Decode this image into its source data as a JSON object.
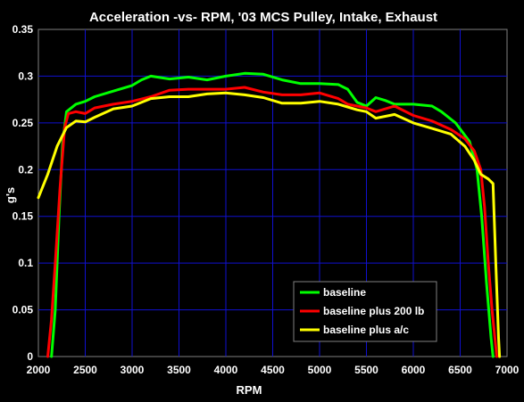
{
  "chart_data": {
    "type": "line",
    "title": "Acceleration -vs- RPM, '03 MCS Pulley, Intake, Exhaust",
    "xlabel": "RPM",
    "ylabel": "g's",
    "xlim": [
      2000,
      7000
    ],
    "ylim": [
      0,
      0.35
    ],
    "xticks": [
      "2000",
      "2500",
      "3000",
      "3500",
      "4000",
      "4500",
      "5000",
      "5500",
      "6000",
      "6500",
      "7000"
    ],
    "yticks": [
      "0",
      "0.05",
      "0.1",
      "0.15",
      "0.2",
      "0.25",
      "0.3",
      "0.35"
    ],
    "grid": true,
    "legend_position": "bottom-right",
    "series": [
      {
        "name": "baseline",
        "color": "#00ff00",
        "points": [
          [
            2140,
            0
          ],
          [
            2180,
            0.05
          ],
          [
            2220,
            0.15
          ],
          [
            2260,
            0.23
          ],
          [
            2300,
            0.262
          ],
          [
            2400,
            0.27
          ],
          [
            2500,
            0.273
          ],
          [
            2600,
            0.278
          ],
          [
            2800,
            0.284
          ],
          [
            3000,
            0.29
          ],
          [
            3100,
            0.296
          ],
          [
            3200,
            0.3
          ],
          [
            3400,
            0.297
          ],
          [
            3600,
            0.299
          ],
          [
            3800,
            0.296
          ],
          [
            4000,
            0.3
          ],
          [
            4200,
            0.303
          ],
          [
            4400,
            0.302
          ],
          [
            4600,
            0.296
          ],
          [
            4800,
            0.292
          ],
          [
            5000,
            0.292
          ],
          [
            5200,
            0.291
          ],
          [
            5300,
            0.286
          ],
          [
            5400,
            0.272
          ],
          [
            5500,
            0.268
          ],
          [
            5600,
            0.277
          ],
          [
            5700,
            0.274
          ],
          [
            5800,
            0.27
          ],
          [
            6000,
            0.27
          ],
          [
            6200,
            0.268
          ],
          [
            6300,
            0.262
          ],
          [
            6450,
            0.25
          ],
          [
            6600,
            0.23
          ],
          [
            6680,
            0.2
          ],
          [
            6730,
            0.15
          ],
          [
            6780,
            0.08
          ],
          [
            6830,
            0.02
          ],
          [
            6850,
            0
          ]
        ]
      },
      {
        "name": "baseline plus 200 lb",
        "color": "#ff0000",
        "points": [
          [
            2100,
            0
          ],
          [
            2140,
            0.04
          ],
          [
            2180,
            0.1
          ],
          [
            2230,
            0.18
          ],
          [
            2280,
            0.245
          ],
          [
            2320,
            0.26
          ],
          [
            2400,
            0.262
          ],
          [
            2500,
            0.26
          ],
          [
            2600,
            0.266
          ],
          [
            2800,
            0.27
          ],
          [
            3000,
            0.273
          ],
          [
            3200,
            0.278
          ],
          [
            3400,
            0.285
          ],
          [
            3600,
            0.286
          ],
          [
            3800,
            0.286
          ],
          [
            4000,
            0.286
          ],
          [
            4200,
            0.288
          ],
          [
            4400,
            0.283
          ],
          [
            4600,
            0.28
          ],
          [
            4800,
            0.28
          ],
          [
            5000,
            0.282
          ],
          [
            5200,
            0.276
          ],
          [
            5300,
            0.27
          ],
          [
            5400,
            0.268
          ],
          [
            5500,
            0.266
          ],
          [
            5600,
            0.262
          ],
          [
            5800,
            0.268
          ],
          [
            6000,
            0.258
          ],
          [
            6200,
            0.252
          ],
          [
            6400,
            0.243
          ],
          [
            6550,
            0.233
          ],
          [
            6650,
            0.22
          ],
          [
            6720,
            0.2
          ],
          [
            6760,
            0.16
          ],
          [
            6800,
            0.1
          ],
          [
            6840,
            0.05
          ],
          [
            6890,
            0
          ]
        ]
      },
      {
        "name": "baseline plus a/c",
        "color": "#ffff00",
        "points": [
          [
            2000,
            0.17
          ],
          [
            2100,
            0.195
          ],
          [
            2200,
            0.225
          ],
          [
            2300,
            0.245
          ],
          [
            2400,
            0.252
          ],
          [
            2500,
            0.251
          ],
          [
            2600,
            0.256
          ],
          [
            2800,
            0.265
          ],
          [
            3000,
            0.268
          ],
          [
            3200,
            0.276
          ],
          [
            3400,
            0.278
          ],
          [
            3600,
            0.278
          ],
          [
            3800,
            0.281
          ],
          [
            4000,
            0.282
          ],
          [
            4200,
            0.28
          ],
          [
            4400,
            0.277
          ],
          [
            4600,
            0.271
          ],
          [
            4800,
            0.271
          ],
          [
            5000,
            0.273
          ],
          [
            5200,
            0.27
          ],
          [
            5400,
            0.264
          ],
          [
            5500,
            0.262
          ],
          [
            5600,
            0.255
          ],
          [
            5800,
            0.259
          ],
          [
            6000,
            0.25
          ],
          [
            6200,
            0.244
          ],
          [
            6400,
            0.238
          ],
          [
            6550,
            0.225
          ],
          [
            6650,
            0.21
          ],
          [
            6720,
            0.195
          ],
          [
            6800,
            0.19
          ],
          [
            6850,
            0.185
          ],
          [
            6880,
            0.1
          ],
          [
            6910,
            0.02
          ],
          [
            6920,
            0
          ]
        ]
      }
    ]
  }
}
